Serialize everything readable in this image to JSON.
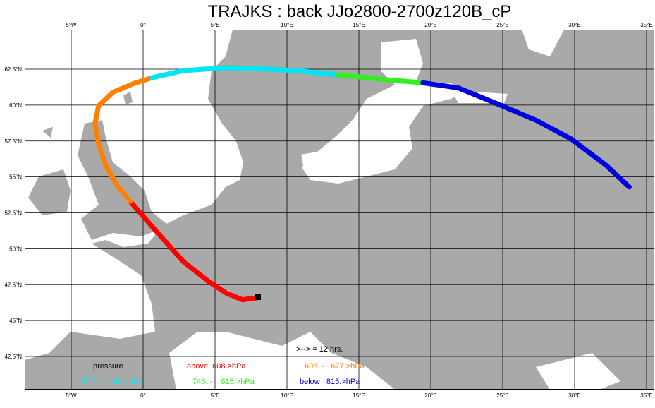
{
  "title": "TRAJKS : back JJo2800-2700z120B_cP",
  "lon_ticks": [
    {
      "value": -5,
      "label": "5°W"
    },
    {
      "value": 0,
      "label": "0°"
    },
    {
      "value": 5,
      "label": "5°E"
    },
    {
      "value": 10,
      "label": "10°E"
    },
    {
      "value": 15,
      "label": "15°E"
    },
    {
      "value": 20,
      "label": "20°E"
    },
    {
      "value": 25,
      "label": "25°E"
    },
    {
      "value": 30,
      "label": "30°E"
    },
    {
      "value": 35,
      "label": "35°E"
    }
  ],
  "lat_ticks": [
    {
      "value": 62.5,
      "label": "62.5°N"
    },
    {
      "value": 60,
      "label": "60°N"
    },
    {
      "value": 57.5,
      "label": "57.5°N"
    },
    {
      "value": 55,
      "label": "55°N"
    },
    {
      "value": 52.5,
      "label": "52.5°N"
    },
    {
      "value": 50,
      "label": "50°N"
    },
    {
      "value": 47.5,
      "label": "47.5°N"
    },
    {
      "value": 45,
      "label": "45°N"
    },
    {
      "value": 42.5,
      "label": "42.5°N"
    }
  ],
  "arrow_note": ">--> = 12 hrs.",
  "legend_title": "pressure",
  "trajectory": {
    "segments": [
      {
        "name": "above  608.>hPa",
        "color": "#ff0000",
        "lon": [
          8.0,
          6.9,
          5.8,
          4.65,
          2.8,
          0.8,
          -0.9
        ],
        "lat": [
          46.6,
          46.45,
          46.9,
          47.65,
          49.1,
          51.35,
          53.3
        ]
      },
      {
        "name": "608. -   677.>hPa",
        "color": "#ff8000",
        "lon": [
          -0.9,
          -1.85,
          -2.6,
          -3.1,
          -3.35,
          -3.1,
          -2.1,
          -0.65,
          0.6
        ],
        "lat": [
          53.3,
          54.45,
          55.8,
          57.25,
          58.7,
          59.95,
          60.9,
          61.5,
          61.9
        ]
      },
      {
        "name": "677. -    746.>hPa",
        "color": "#00e5f5",
        "lon": [
          0.6,
          2.8,
          5.75,
          7.7,
          10.65,
          13.6
        ],
        "lat": [
          61.9,
          62.4,
          62.6,
          62.55,
          62.4,
          62.1
        ]
      },
      {
        "name": "746. -    815.>hPa",
        "color": "#33ee22",
        "lon": [
          13.6,
          16.5,
          19.45
        ],
        "lat": [
          62.1,
          61.8,
          61.55
        ]
      },
      {
        "name": "below   815.>hPa",
        "color": "#0000dd",
        "lon": [
          19.45,
          21.9,
          24.35,
          27.3,
          29.75,
          32.2,
          33.8
        ],
        "lat": [
          61.55,
          61.2,
          60.2,
          58.95,
          57.65,
          55.8,
          54.3
        ]
      }
    ]
  }
}
